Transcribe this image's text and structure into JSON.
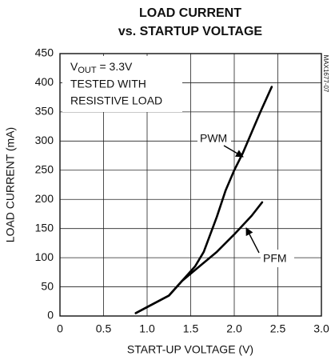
{
  "chart_data": {
    "type": "line",
    "title_lines": [
      "LOAD CURRENT",
      "vs. STARTUP VOLTAGE"
    ],
    "x_label": "START-UP VOLTAGE (V)",
    "y_label": "LOAD CURRENT (mA)",
    "side_label": "MAX1677-07",
    "annotation": {
      "symbol": "V",
      "subscript": "OUT",
      "text": " = 3.3V",
      "lines": [
        "TESTED WITH",
        "RESISTIVE LOAD"
      ]
    },
    "xlim": [
      0,
      3
    ],
    "ylim": [
      0,
      450
    ],
    "xticks": [
      0,
      0.5,
      {
        "value": 1,
        "label": "1.0"
      },
      1.5,
      {
        "value": 2,
        "label": "2.0"
      },
      2.5,
      {
        "value": 3,
        "label": "3.0"
      }
    ],
    "yticks": [
      0,
      50,
      100,
      150,
      200,
      250,
      300,
      350,
      400,
      450
    ],
    "grid": true,
    "series": [
      {
        "name": "PWM",
        "color": "#000000",
        "x": [
          0.87,
          1.25,
          1.4,
          1.55,
          1.65,
          1.8,
          1.9,
          2.0,
          2.1,
          2.2,
          2.3,
          2.43
        ],
        "values": [
          5,
          35,
          60,
          85,
          110,
          170,
          215,
          250,
          280,
          315,
          350,
          393
        ]
      },
      {
        "name": "PFM",
        "color": "#000000",
        "x": [
          0.87,
          1.25,
          1.4,
          1.6,
          1.8,
          2.0,
          2.2,
          2.32
        ],
        "values": [
          5,
          35,
          60,
          85,
          110,
          140,
          172,
          195
        ]
      }
    ]
  }
}
